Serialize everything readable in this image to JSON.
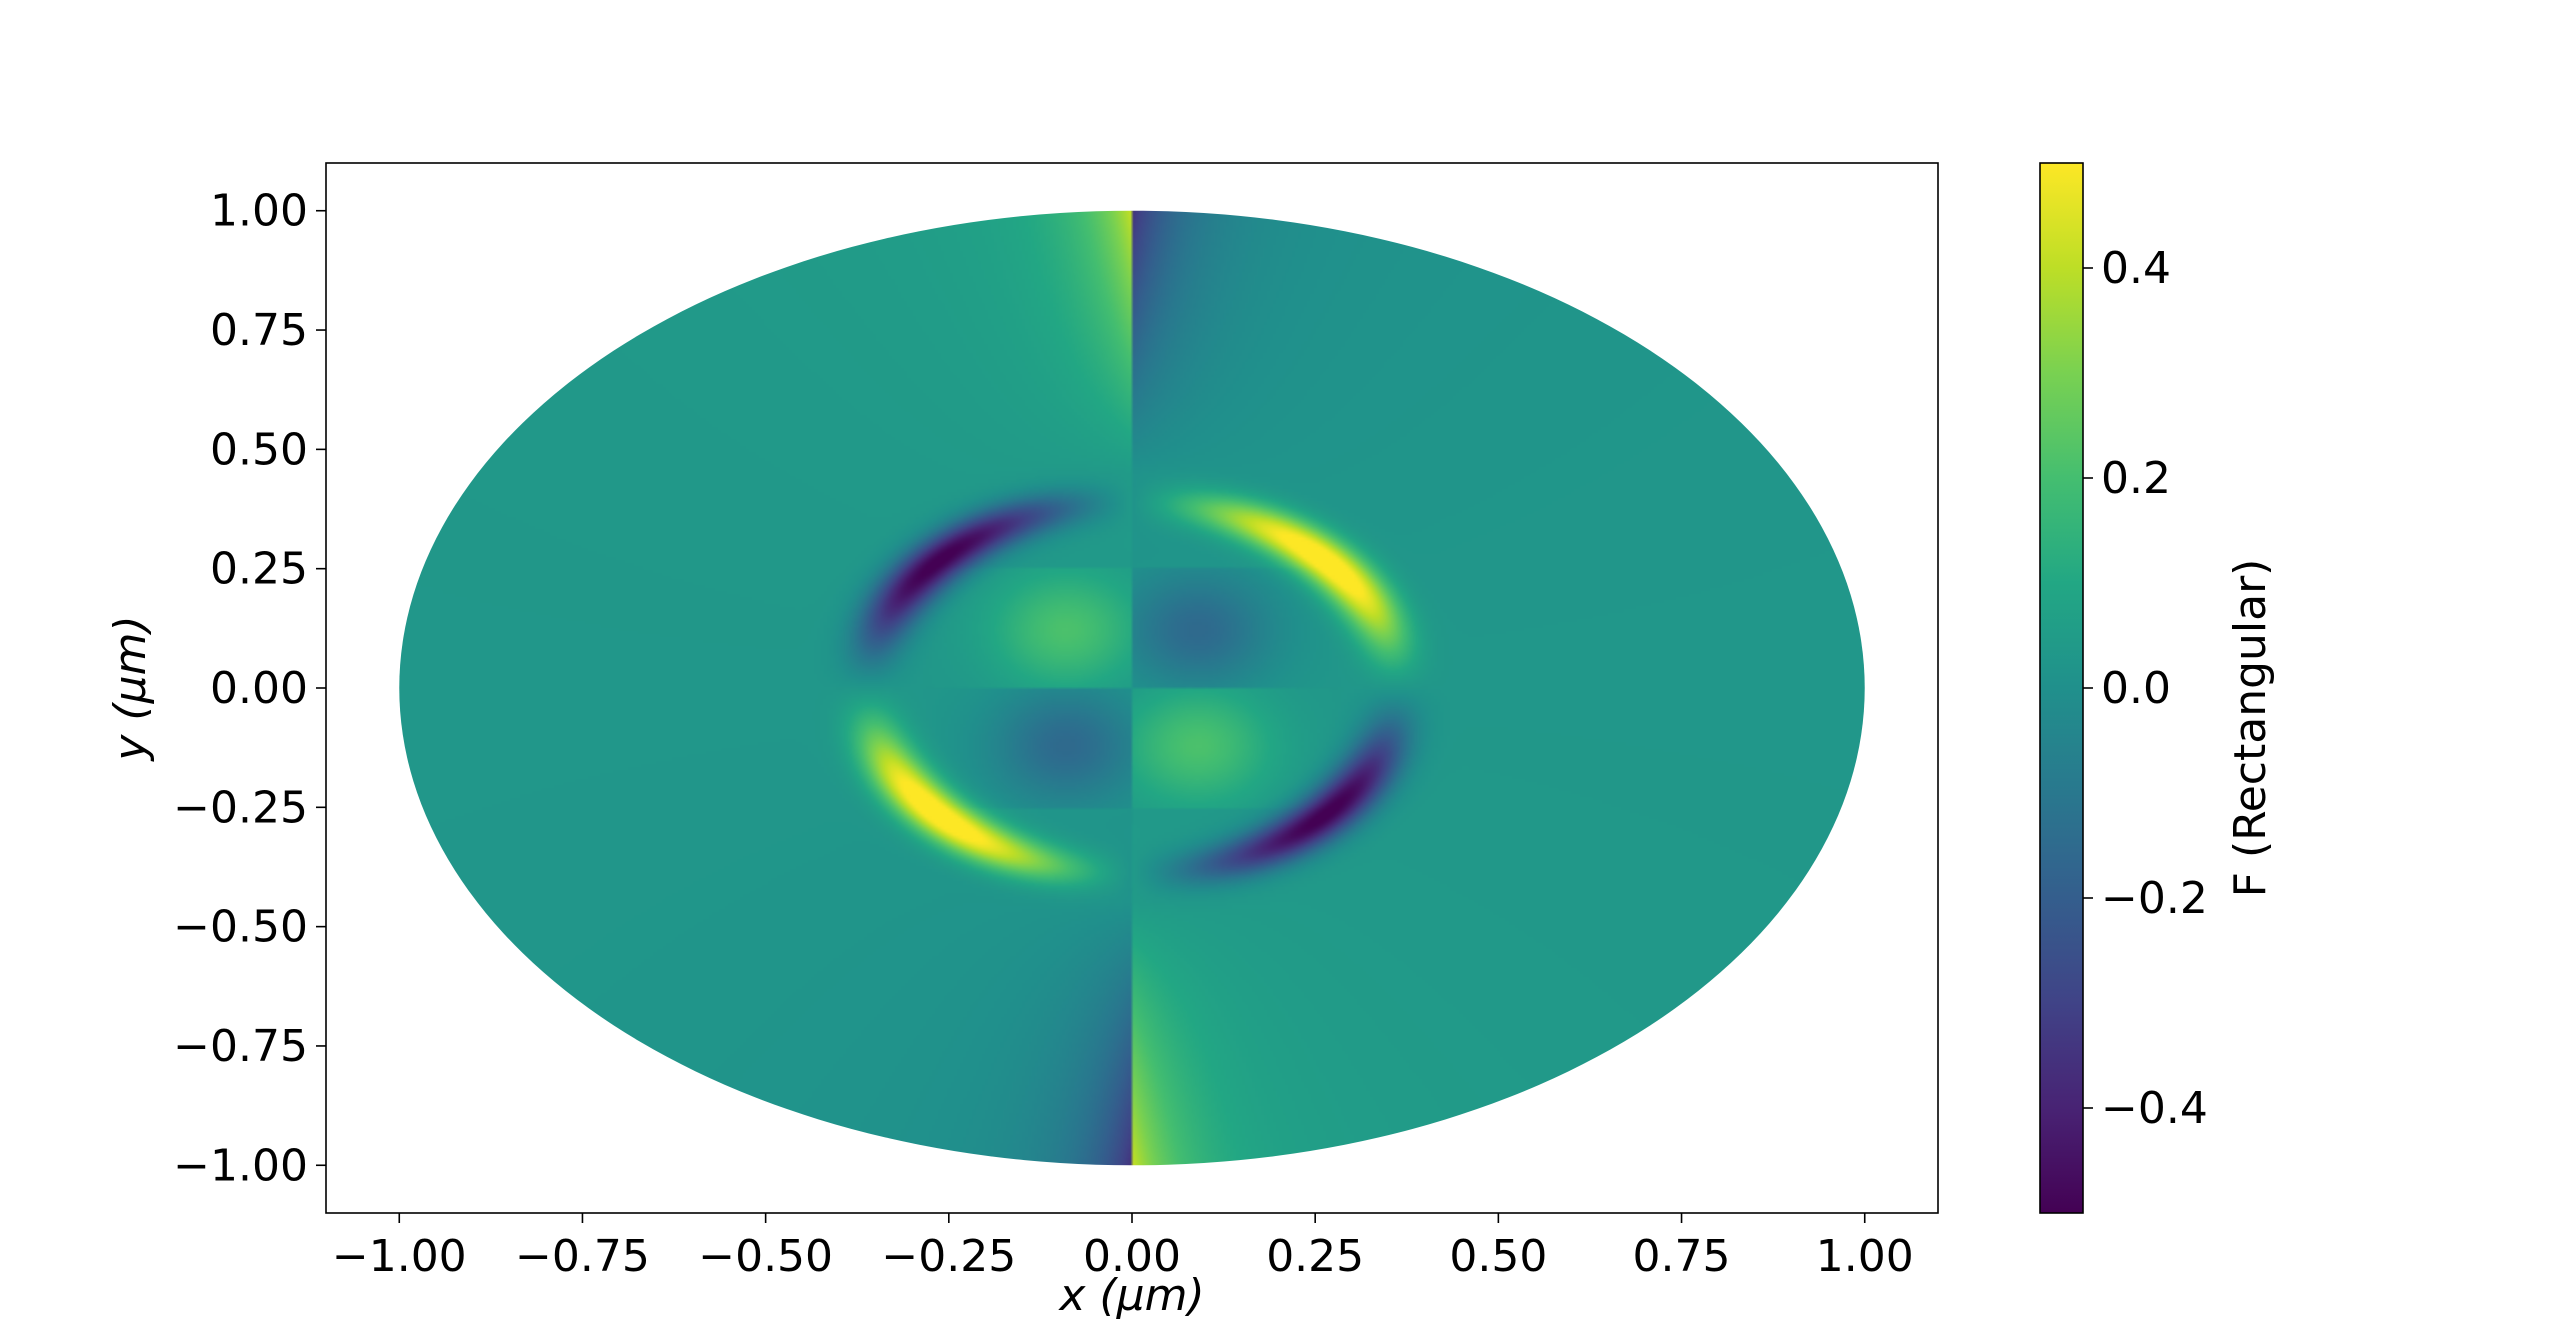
{
  "chart_data": {
    "type": "heatmap",
    "title": "",
    "xlabel": "x (μm)",
    "ylabel": "y (μm)",
    "xlim": [
      -1.1,
      1.1
    ],
    "ylim": [
      -1.1,
      1.1
    ],
    "x_ticks": [
      -1.0,
      -0.75,
      -0.5,
      -0.25,
      0.0,
      0.25,
      0.5,
      0.75,
      1.0
    ],
    "y_ticks": [
      -1.0,
      -0.75,
      -0.5,
      -0.25,
      0.0,
      0.25,
      0.5,
      0.75,
      1.0
    ],
    "x_tick_labels": [
      "−1.00",
      "−0.75",
      "−0.50",
      "−0.25",
      "0.00",
      "0.25",
      "0.50",
      "0.75",
      "1.00"
    ],
    "y_tick_labels": [
      "−1.00",
      "−0.75",
      "−0.50",
      "−0.25",
      "0.00",
      "0.25",
      "0.50",
      "0.75",
      "1.00"
    ],
    "domain": {
      "shape": "ellipse",
      "semi_axis_x": 1.0,
      "semi_axis_y": 1.0
    },
    "inner_rectangle": {
      "x": [
        -0.375,
        0.375
      ],
      "y": [
        -0.25,
        0.25
      ]
    },
    "colormap": "viridis",
    "colorbar": {
      "label": "F (Rectangular)",
      "range": [
        -0.5,
        0.5
      ],
      "ticks": [
        -0.4,
        -0.2,
        0.0,
        0.2,
        0.4
      ],
      "tick_labels": [
        "−0.4",
        "−0.2",
        "0.0",
        "0.2",
        "0.4"
      ]
    },
    "features": [
      {
        "label": "lobe-upper-right",
        "x": 0.15,
        "y": 0.36,
        "value": 0.5
      },
      {
        "label": "lobe-lower-left",
        "x": -0.15,
        "y": -0.36,
        "value": 0.5
      },
      {
        "label": "lobe-upper-left",
        "x": -0.15,
        "y": 0.36,
        "value": -0.5
      },
      {
        "label": "lobe-lower-right",
        "x": 0.15,
        "y": -0.36,
        "value": -0.5
      },
      {
        "label": "top-left-of-axis",
        "x": -0.05,
        "y": 0.95,
        "value": 0.3
      },
      {
        "label": "top-right-of-axis",
        "x": 0.05,
        "y": 0.95,
        "value": -0.25
      },
      {
        "label": "bottom-left-of-axis",
        "x": -0.05,
        "y": -0.95,
        "value": -0.25
      },
      {
        "label": "bottom-right-of-axis",
        "x": 0.05,
        "y": -0.95,
        "value": 0.3
      },
      {
        "label": "inner-upper-left",
        "x": -0.08,
        "y": 0.12,
        "value": 0.2
      },
      {
        "label": "inner-upper-right",
        "x": 0.08,
        "y": 0.12,
        "value": -0.15
      },
      {
        "label": "inner-lower-left",
        "x": -0.08,
        "y": -0.12,
        "value": -0.15
      },
      {
        "label": "inner-lower-right",
        "x": 0.08,
        "y": -0.12,
        "value": 0.2
      }
    ],
    "grid": false
  }
}
